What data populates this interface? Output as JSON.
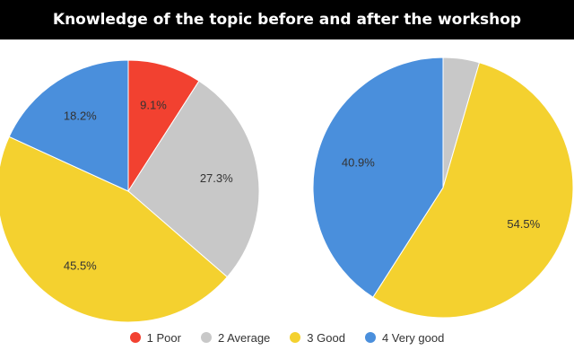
{
  "title": "Knowledge of the topic before and after the workshop",
  "legend": [
    {
      "label": "1 Poor",
      "color": "#f24130"
    },
    {
      "label": "2 Average",
      "color": "#c8c8c8"
    },
    {
      "label": "3 Good",
      "color": "#f4d12f"
    },
    {
      "label": "4 Very good",
      "color": "#4a8fdc"
    }
  ],
  "chart_data": [
    {
      "type": "pie",
      "title": "",
      "legend_placement": "bottom",
      "slices": [
        {
          "category": "1 Poor",
          "value": 9.1,
          "label": "9.1%"
        },
        {
          "category": "2 Average",
          "value": 27.3,
          "label": "27.3%"
        },
        {
          "category": "3 Good",
          "value": 45.5,
          "label": "45.5%"
        },
        {
          "category": "4 Very good",
          "value": 18.2,
          "label": "18.2%"
        }
      ]
    },
    {
      "type": "pie",
      "title": "",
      "legend_placement": "bottom",
      "slices": [
        {
          "category": "1 Poor",
          "value": 0,
          "label": ""
        },
        {
          "category": "2 Average",
          "value": 4.5,
          "label": ""
        },
        {
          "category": "3 Good",
          "value": 54.5,
          "label": "54.5%"
        },
        {
          "category": "4 Very good",
          "value": 40.9,
          "label": "40.9%"
        }
      ]
    }
  ]
}
